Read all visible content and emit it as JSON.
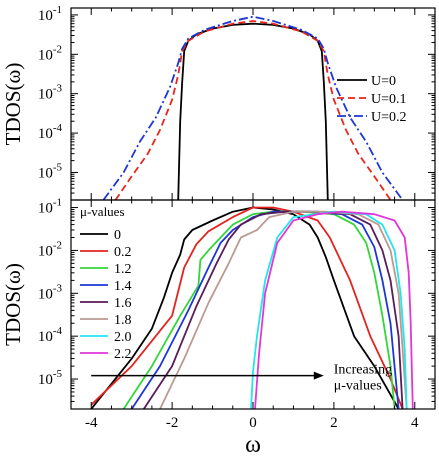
{
  "chart_data": [
    {
      "type": "line",
      "panel": "top",
      "title": "",
      "xlabel": "",
      "ylabel": "TDOS(ω)",
      "yscale": "log",
      "xlim": [
        -4.5,
        4.5
      ],
      "ylim": [
        2e-06,
        0.15
      ],
      "y_ticks": [
        {
          "v": 0.1,
          "m": "10",
          "e": "-1"
        },
        {
          "v": 0.01,
          "m": "10",
          "e": "-2"
        },
        {
          "v": 0.001,
          "m": "10",
          "e": "-3"
        },
        {
          "v": 0.0001,
          "m": "10",
          "e": "-4"
        },
        {
          "v": 1e-05,
          "m": "10",
          "e": "-5"
        }
      ],
      "legend_position": "right",
      "series": [
        {
          "name": "U=0",
          "color": "#000000",
          "dash": "solid",
          "points": [
            [
              -1.85,
              2e-06
            ],
            [
              -1.8,
              0.0002
            ],
            [
              -1.75,
              0.002
            ],
            [
              -1.7,
              0.012
            ],
            [
              -1.6,
              0.022
            ],
            [
              -1.4,
              0.032
            ],
            [
              -1.0,
              0.045
            ],
            [
              -0.5,
              0.056
            ],
            [
              0.0,
              0.06
            ],
            [
              0.5,
              0.056
            ],
            [
              1.0,
              0.045
            ],
            [
              1.4,
              0.032
            ],
            [
              1.6,
              0.022
            ],
            [
              1.7,
              0.012
            ],
            [
              1.75,
              0.002
            ],
            [
              1.8,
              0.0002
            ],
            [
              1.85,
              2e-06
            ]
          ]
        },
        {
          "name": "U=0.1",
          "color": "#e8261c",
          "dash": "dashed",
          "points": [
            [
              -3.4,
              2e-06
            ],
            [
              -3.0,
              8e-06
            ],
            [
              -2.6,
              3e-05
            ],
            [
              -2.3,
              0.00012
            ],
            [
              -2.0,
              0.0007
            ],
            [
              -1.85,
              0.003
            ],
            [
              -1.75,
              0.012
            ],
            [
              -1.6,
              0.022
            ],
            [
              -1.2,
              0.038
            ],
            [
              -0.5,
              0.06
            ],
            [
              0.0,
              0.07
            ],
            [
              0.5,
              0.06
            ],
            [
              1.2,
              0.038
            ],
            [
              1.6,
              0.022
            ],
            [
              1.75,
              0.012
            ],
            [
              1.85,
              0.003
            ],
            [
              2.0,
              0.0007
            ],
            [
              2.3,
              0.00012
            ],
            [
              2.6,
              3e-05
            ],
            [
              3.0,
              8e-06
            ],
            [
              3.4,
              2e-06
            ]
          ]
        },
        {
          "name": "U=0.2",
          "color": "#1f35d6",
          "dash": "dashdot",
          "points": [
            [
              -3.7,
              2e-06
            ],
            [
              -3.2,
              1e-05
            ],
            [
              -2.8,
              6e-05
            ],
            [
              -2.4,
              0.00025
            ],
            [
              -2.05,
              0.0015
            ],
            [
              -1.85,
              0.006
            ],
            [
              -1.75,
              0.014
            ],
            [
              -1.6,
              0.025
            ],
            [
              -1.2,
              0.042
            ],
            [
              -0.5,
              0.07
            ],
            [
              0.0,
              0.09
            ],
            [
              0.5,
              0.07
            ],
            [
              1.2,
              0.042
            ],
            [
              1.6,
              0.025
            ],
            [
              1.75,
              0.014
            ],
            [
              1.85,
              0.006
            ],
            [
              2.05,
              0.0015
            ],
            [
              2.4,
              0.00025
            ],
            [
              2.8,
              6e-05
            ],
            [
              3.2,
              1e-05
            ],
            [
              3.7,
              2e-06
            ]
          ]
        }
      ]
    },
    {
      "type": "line",
      "panel": "bottom",
      "title": "",
      "xlabel": "ω",
      "ylabel": "TDOS(ω)",
      "yscale": "log",
      "xlim": [
        -4.5,
        4.5
      ],
      "ylim": [
        2e-06,
        0.15
      ],
      "x_ticks": [
        "-4",
        "-2",
        "0",
        "2",
        "4"
      ],
      "y_ticks": [
        {
          "v": 0.1,
          "m": "10",
          "e": "-1"
        },
        {
          "v": 0.01,
          "m": "10",
          "e": "-2"
        },
        {
          "v": 0.001,
          "m": "10",
          "e": "-3"
        },
        {
          "v": 0.0001,
          "m": "10",
          "e": "-4"
        },
        {
          "v": 1e-05,
          "m": "10",
          "e": "-5"
        }
      ],
      "legend_title": "μ-values",
      "legend_position": "top-left",
      "annotation": {
        "line1": "Increasing",
        "line2": "μ-values",
        "arrow_from_x": -4.0,
        "arrow_to_x": 1.75,
        "arrow_y": 1.2e-05
      },
      "series": [
        {
          "name": "0",
          "color": "#000000",
          "points": [
            [
              -4.0,
              2e-06
            ],
            [
              -3.0,
              3e-05
            ],
            [
              -2.5,
              0.00015
            ],
            [
              -2.2,
              0.0008
            ],
            [
              -2.0,
              0.003
            ],
            [
              -1.8,
              0.008
            ],
            [
              -1.7,
              0.018
            ],
            [
              -1.5,
              0.03
            ],
            [
              -1.0,
              0.05
            ],
            [
              -0.5,
              0.08
            ],
            [
              0.0,
              0.1
            ],
            [
              0.5,
              0.09
            ],
            [
              1.0,
              0.07
            ],
            [
              1.4,
              0.04
            ],
            [
              1.6,
              0.02
            ],
            [
              1.8,
              0.007
            ],
            [
              2.0,
              0.002
            ],
            [
              2.5,
              0.0001
            ],
            [
              3.0,
              2e-05
            ],
            [
              3.6,
              2e-06
            ]
          ]
        },
        {
          "name": "0.2",
          "color": "#e3231f",
          "points": [
            [
              -4.0,
              2.5e-06
            ],
            [
              -3.0,
              2e-05
            ],
            [
              -2.0,
              0.0003
            ],
            [
              -1.7,
              0.004
            ],
            [
              -1.4,
              0.014
            ],
            [
              -1.1,
              0.028
            ],
            [
              -0.5,
              0.06
            ],
            [
              0.0,
              0.1
            ],
            [
              0.5,
              0.1
            ],
            [
              1.0,
              0.08
            ],
            [
              1.6,
              0.05
            ],
            [
              1.9,
              0.02
            ],
            [
              2.1,
              0.008
            ],
            [
              2.4,
              0.002
            ],
            [
              2.9,
              0.0001
            ],
            [
              3.4,
              1e-05
            ],
            [
              3.7,
              2e-06
            ]
          ]
        },
        {
          "name": "1.2",
          "color": "#33d63a",
          "points": [
            [
              -3.2,
              2e-06
            ],
            [
              -2.5,
              2e-05
            ],
            [
              -1.8,
              0.0003
            ],
            [
              -1.35,
              0.0015
            ],
            [
              -1.3,
              0.006
            ],
            [
              -1.1,
              0.01
            ],
            [
              -0.8,
              0.02
            ],
            [
              -0.5,
              0.04
            ],
            [
              0.0,
              0.07
            ],
            [
              0.5,
              0.08
            ],
            [
              1.2,
              0.08
            ],
            [
              2.0,
              0.07
            ],
            [
              2.5,
              0.04
            ],
            [
              2.8,
              0.015
            ],
            [
              3.0,
              0.003
            ],
            [
              3.2,
              0.0003
            ],
            [
              3.4,
              2e-05
            ],
            [
              3.5,
              2e-06
            ]
          ]
        },
        {
          "name": "1.4",
          "color": "#1c36d9",
          "points": [
            [
              -3.0,
              2e-06
            ],
            [
              -2.3,
              2e-05
            ],
            [
              -1.6,
              0.0004
            ],
            [
              -1.1,
              0.004
            ],
            [
              -0.8,
              0.015
            ],
            [
              -0.5,
              0.03
            ],
            [
              0.0,
              0.06
            ],
            [
              0.5,
              0.08
            ],
            [
              1.4,
              0.08
            ],
            [
              2.2,
              0.07
            ],
            [
              2.7,
              0.04
            ],
            [
              3.0,
              0.012
            ],
            [
              3.2,
              0.002
            ],
            [
              3.4,
              0.0002
            ],
            [
              3.6,
              2e-06
            ]
          ]
        },
        {
          "name": "1.6",
          "color": "#5a1c5a",
          "points": [
            [
              -2.7,
              2e-06
            ],
            [
              -2.0,
              2e-05
            ],
            [
              -1.4,
              0.0005
            ],
            [
              -0.9,
              0.005
            ],
            [
              -0.6,
              0.018
            ],
            [
              -0.3,
              0.04
            ],
            [
              0.2,
              0.07
            ],
            [
              0.8,
              0.08
            ],
            [
              1.6,
              0.08
            ],
            [
              2.4,
              0.07
            ],
            [
              2.9,
              0.04
            ],
            [
              3.2,
              0.01
            ],
            [
              3.4,
              0.002
            ],
            [
              3.6,
              0.0001
            ],
            [
              3.7,
              2e-06
            ]
          ]
        },
        {
          "name": "1.8",
          "color": "#bb9a92",
          "points": [
            [
              -2.3,
              2e-06
            ],
            [
              -1.7,
              3e-05
            ],
            [
              -1.1,
              0.0006
            ],
            [
              -0.6,
              0.005
            ],
            [
              -0.3,
              0.02
            ],
            [
              0.1,
              0.03
            ],
            [
              0.4,
              0.06
            ],
            [
              1.0,
              0.08
            ],
            [
              1.8,
              0.08
            ],
            [
              2.6,
              0.07
            ],
            [
              3.1,
              0.04
            ],
            [
              3.4,
              0.01
            ],
            [
              3.6,
              0.001
            ],
            [
              3.7,
              5e-05
            ],
            [
              3.8,
              2e-06
            ]
          ]
        },
        {
          "name": "2.0",
          "color": "#22e5ee",
          "points": [
            [
              -0.05,
              2e-06
            ],
            [
              0.0,
              1.5e-05
            ],
            [
              0.1,
              0.0001
            ],
            [
              0.3,
              0.002
            ],
            [
              0.6,
              0.02
            ],
            [
              1.0,
              0.06
            ],
            [
              2.0,
              0.08
            ],
            [
              2.8,
              0.07
            ],
            [
              3.2,
              0.04
            ],
            [
              3.5,
              0.01
            ],
            [
              3.65,
              0.001
            ],
            [
              3.75,
              5e-05
            ],
            [
              3.8,
              2e-06
            ]
          ]
        },
        {
          "name": "2.2",
          "color": "#e236d8",
          "points": [
            [
              0.05,
              2e-06
            ],
            [
              0.15,
              4e-05
            ],
            [
              0.3,
              0.001
            ],
            [
              0.6,
              0.015
            ],
            [
              1.0,
              0.05
            ],
            [
              1.6,
              0.07
            ],
            [
              2.2,
              0.08
            ],
            [
              3.0,
              0.07
            ],
            [
              3.5,
              0.05
            ],
            [
              3.75,
              0.02
            ],
            [
              3.85,
              0.003
            ],
            [
              3.9,
              0.0002
            ],
            [
              3.95,
              2e-06
            ]
          ]
        }
      ]
    }
  ]
}
